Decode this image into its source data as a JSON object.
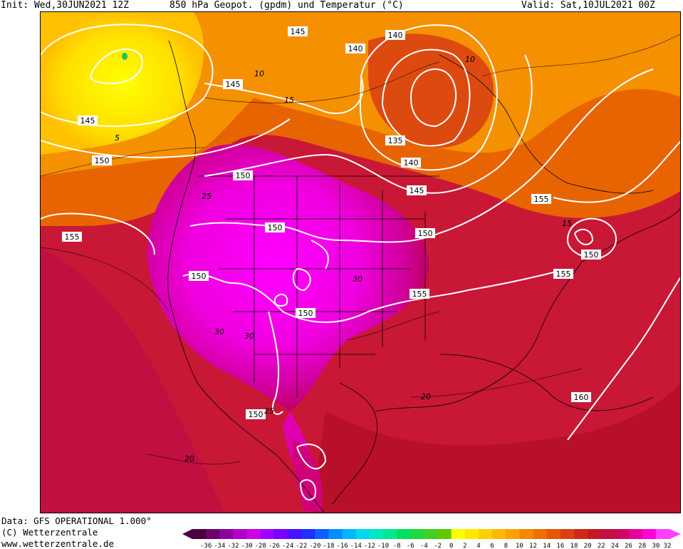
{
  "header": {
    "init": "Init: Wed,30JUN2021 12Z",
    "title": "850 hPa Geopot. (gpdm) und Temperatur (°C)",
    "valid": "Valid: Sat,10JUL2021 00Z"
  },
  "footer": {
    "data_line": "Data: GFS OPERATIONAL 1.000°",
    "copyright": "(C) Wetterzentrale",
    "url": "www.wetterzentrale.de"
  },
  "contour_labels": {
    "geopotential": [
      "145",
      "140",
      "140",
      "145",
      "145",
      "135",
      "140",
      "145",
      "150",
      "150",
      "150",
      "155",
      "155",
      "150",
      "150",
      "155",
      "155",
      "150",
      "150",
      "150",
      "160"
    ],
    "temperature": [
      "10",
      "10",
      "15",
      "5",
      "15",
      "25",
      "30",
      "30",
      "30",
      "25",
      "20",
      "20"
    ]
  },
  "legend": {
    "ticks": [
      "-36",
      "-34",
      "-32",
      "-30",
      "-28",
      "-26",
      "-24",
      "-22",
      "-20",
      "-18",
      "-16",
      "-14",
      "-12",
      "-10",
      "-8",
      "-6",
      "-4",
      "-2",
      "0",
      "2",
      "4",
      "6",
      "8",
      "10",
      "12",
      "14",
      "16",
      "18",
      "20",
      "22",
      "24",
      "26",
      "28",
      "30",
      "32"
    ],
    "colors": [
      "#4a0040",
      "#6e0070",
      "#8e00a0",
      "#b000c8",
      "#cf00e8",
      "#a000ff",
      "#7a00ff",
      "#4a10ff",
      "#2030ff",
      "#1060ff",
      "#0090ff",
      "#00b8ff",
      "#00d8f0",
      "#00e8c0",
      "#00e890",
      "#00e060",
      "#20d840",
      "#40d020",
      "#60c800",
      "#ffff00",
      "#ffe800",
      "#ffd000",
      "#ffb800",
      "#ffa000",
      "#f58800",
      "#ee7000",
      "#e65800",
      "#dc4010",
      "#d02818",
      "#c41828",
      "#c01040",
      "#d00860",
      "#e80098",
      "#ff00d8",
      "#ff40ff"
    ]
  },
  "colors": {
    "cold_yellow": "#ffff00",
    "orange": "#f59000",
    "warm_red": "#c8102e",
    "hot_magenta": "#ff00ff"
  }
}
